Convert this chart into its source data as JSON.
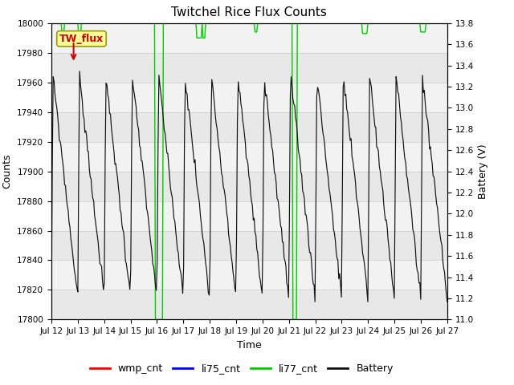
{
  "title": "Twitchel Rice Flux Counts",
  "xlabel": "Time",
  "ylabel_left": "Counts",
  "ylabel_right": "Battery (V)",
  "ylim_left": [
    17800,
    18000
  ],
  "ylim_right": [
    11.0,
    13.8
  ],
  "n_days": 15,
  "xtick_labels": [
    "Jul 12",
    "Jul 13",
    "Jul 14",
    "Jul 15",
    "Jul 16",
    "Jul 17",
    "Jul 18",
    "Jul 19",
    "Jul 20",
    "Jul 21",
    "Jul 22",
    "Jul 23",
    "Jul 24",
    "Jul 25",
    "Jul 26",
    "Jul 27"
  ],
  "yticks_left": [
    17800,
    17820,
    17840,
    17860,
    17880,
    17900,
    17920,
    17940,
    17960,
    17980,
    18000
  ],
  "yticks_right": [
    11.0,
    11.2,
    11.4,
    11.6,
    11.8,
    12.0,
    12.2,
    12.4,
    12.6,
    12.8,
    13.0,
    13.2,
    13.4,
    13.6,
    13.8
  ],
  "annotation_text": "TW_flux",
  "annotation_color": "#cc0000",
  "annotation_bg": "#ffff99",
  "annotation_border": "#999900",
  "li77_color": "#00cc00",
  "battery_color": "#111111",
  "wmp_color": "#ff0000",
  "li75_color": "#0000ff",
  "band_light": "#e8e8e8",
  "band_lighter": "#f2f2f2",
  "legend_entries": [
    "wmp_cnt",
    "li75_cnt",
    "li77_cnt",
    "Battery"
  ],
  "title_fontsize": 11,
  "axis_fontsize": 9,
  "tick_fontsize": 7.5,
  "legend_fontsize": 9
}
